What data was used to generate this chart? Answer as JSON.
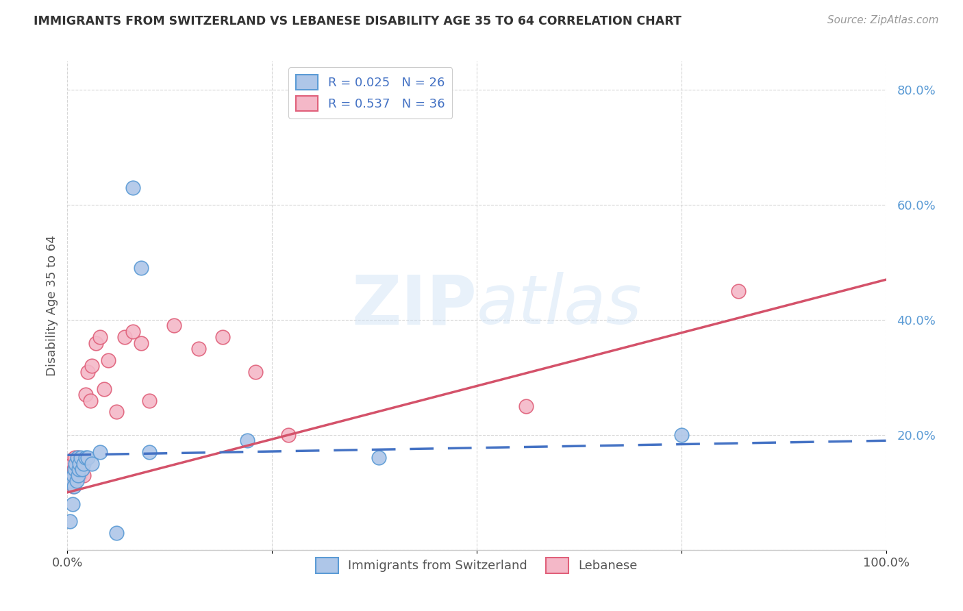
{
  "title": "IMMIGRANTS FROM SWITZERLAND VS LEBANESE DISABILITY AGE 35 TO 64 CORRELATION CHART",
  "source": "Source: ZipAtlas.com",
  "ylabel": "Disability Age 35 to 64",
  "xlabel": "",
  "legend_bottom": [
    "Immigrants from Switzerland",
    "Lebanese"
  ],
  "swiss_R": "0.025",
  "swiss_N": "26",
  "lebanese_R": "0.537",
  "lebanese_N": "36",
  "xlim": [
    0.0,
    1.0
  ],
  "ylim": [
    0.0,
    0.85
  ],
  "xticks": [
    0.0,
    0.25,
    0.5,
    0.75,
    1.0
  ],
  "xticklabels": [
    "0.0%",
    "",
    "",
    "",
    "100.0%"
  ],
  "yticks": [
    0.0,
    0.2,
    0.4,
    0.6,
    0.8
  ],
  "yticklabels": [
    "",
    "20.0%",
    "40.0%",
    "60.0%",
    "80.0%"
  ],
  "swiss_color": "#aec6e8",
  "lebanese_color": "#f4b8c8",
  "swiss_edge_color": "#5b9bd5",
  "lebanese_edge_color": "#e0607a",
  "swiss_line_color": "#4472c4",
  "lebanese_line_color": "#d4526a",
  "swiss_scatter_x": [
    0.003,
    0.005,
    0.006,
    0.007,
    0.008,
    0.009,
    0.01,
    0.011,
    0.012,
    0.013,
    0.014,
    0.015,
    0.016,
    0.018,
    0.02,
    0.022,
    0.025,
    0.03,
    0.04,
    0.06,
    0.08,
    0.09,
    0.1,
    0.22,
    0.38,
    0.75
  ],
  "swiss_scatter_y": [
    0.05,
    0.12,
    0.08,
    0.13,
    0.11,
    0.14,
    0.15,
    0.12,
    0.16,
    0.13,
    0.14,
    0.15,
    0.16,
    0.14,
    0.15,
    0.16,
    0.16,
    0.15,
    0.17,
    0.03,
    0.63,
    0.49,
    0.17,
    0.19,
    0.16,
    0.2
  ],
  "lebanese_scatter_x": [
    0.003,
    0.004,
    0.005,
    0.006,
    0.007,
    0.008,
    0.009,
    0.01,
    0.011,
    0.012,
    0.013,
    0.014,
    0.015,
    0.016,
    0.018,
    0.02,
    0.022,
    0.025,
    0.028,
    0.03,
    0.035,
    0.04,
    0.045,
    0.05,
    0.06,
    0.07,
    0.08,
    0.09,
    0.1,
    0.13,
    0.16,
    0.19,
    0.23,
    0.27,
    0.56,
    0.82
  ],
  "lebanese_scatter_y": [
    0.12,
    0.14,
    0.13,
    0.15,
    0.11,
    0.14,
    0.16,
    0.13,
    0.15,
    0.14,
    0.16,
    0.15,
    0.13,
    0.15,
    0.14,
    0.13,
    0.27,
    0.31,
    0.26,
    0.32,
    0.36,
    0.37,
    0.28,
    0.33,
    0.24,
    0.37,
    0.38,
    0.36,
    0.26,
    0.39,
    0.35,
    0.37,
    0.31,
    0.2,
    0.25,
    0.45
  ],
  "swiss_trend_x": [
    0.0,
    1.0
  ],
  "swiss_trend_y": [
    0.165,
    0.19
  ],
  "lebanese_trend_x": [
    0.0,
    1.0
  ],
  "lebanese_trend_y": [
    0.1,
    0.47
  ],
  "watermark_zip": "ZIP",
  "watermark_atlas": "atlas",
  "background_color": "#ffffff",
  "grid_color": "#cccccc",
  "title_color": "#333333",
  "source_color": "#999999",
  "tick_color": "#5b9bd5"
}
